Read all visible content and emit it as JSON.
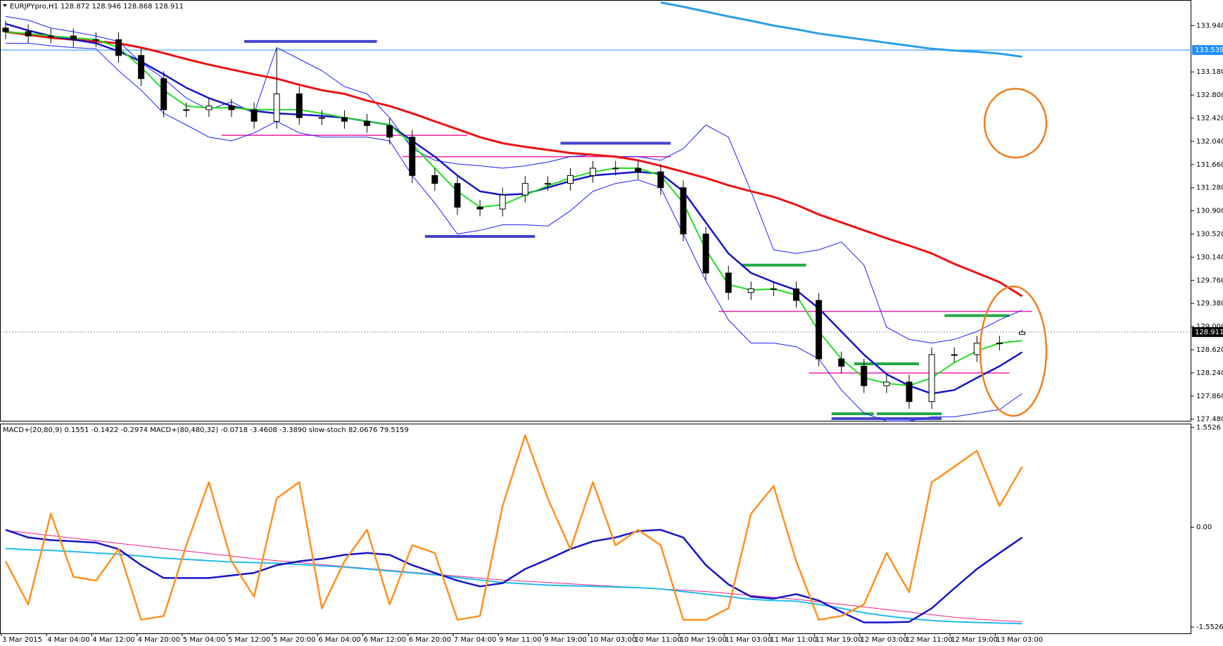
{
  "chart_data": [
    {
      "type": "candlestick",
      "title": "EURJPYpro,H1  128.872 128.946 128.868 128.911",
      "categories": [
        "3 Mar 2015",
        null,
        "4 Mar 04:00",
        null,
        "4 Mar 12:00",
        null,
        "4 Mar 20:00",
        null,
        "5 Mar 04:00",
        null,
        "5 Mar 12:00",
        null,
        "5 Mar 20:00",
        null,
        "6 Mar 04:00",
        null,
        "6 Mar 12:00",
        null,
        "6 Mar 20:00",
        null,
        "7 Mar 04:00",
        null,
        "9 Mar 11:00",
        null,
        "9 Mar 19:00",
        null,
        "10 Mar 03:00",
        null,
        "10 Mar 11:00",
        null,
        "10 Mar 19:00",
        null,
        "11 Mar 03:00",
        null,
        "11 Mar 11:00",
        null,
        "11 Mar 19:00",
        null,
        "12 Mar 03:00",
        null,
        "12 Mar 11:00",
        null,
        "12 Mar 19:00",
        null,
        "13 Mar 03:00",
        null
      ],
      "open": [
        133.9,
        133.84,
        133.77,
        133.77,
        133.71,
        133.71,
        133.45,
        133.07,
        132.56,
        132.56,
        132.62,
        132.56,
        132.37,
        132.82,
        132.43,
        132.43,
        132.37,
        132.3,
        132.11,
        131.48,
        131.35,
        130.96,
        130.93,
        131.16,
        131.35,
        131.35,
        131.48,
        131.6,
        131.6,
        131.54,
        131.28,
        130.52,
        129.88,
        129.56,
        129.62,
        129.62,
        129.43,
        128.47,
        128.35,
        128.03,
        128.09,
        127.77,
        128.54,
        128.54,
        128.73,
        128.872
      ],
      "high": [
        134.02,
        133.96,
        133.89,
        133.89,
        133.83,
        133.83,
        133.57,
        133.19,
        132.68,
        132.74,
        132.74,
        132.68,
        133.57,
        132.94,
        132.55,
        132.55,
        132.49,
        132.42,
        132.23,
        131.6,
        131.47,
        131.08,
        131.28,
        131.47,
        131.47,
        131.6,
        131.72,
        131.72,
        131.72,
        131.66,
        131.4,
        130.64,
        130.0,
        129.74,
        129.74,
        129.74,
        129.55,
        128.59,
        128.47,
        128.21,
        128.21,
        128.66,
        128.66,
        128.85,
        128.85,
        128.946
      ],
      "low": [
        133.72,
        133.65,
        133.65,
        133.59,
        133.59,
        133.33,
        132.95,
        132.44,
        132.44,
        132.44,
        132.44,
        132.25,
        132.25,
        132.31,
        132.31,
        132.25,
        132.18,
        131.99,
        131.36,
        131.23,
        130.84,
        130.81,
        130.81,
        131.04,
        131.23,
        131.23,
        131.36,
        131.48,
        131.42,
        131.16,
        130.4,
        129.76,
        129.44,
        129.44,
        129.5,
        129.31,
        128.35,
        128.23,
        127.91,
        127.91,
        127.65,
        127.65,
        128.42,
        128.42,
        128.61,
        128.868
      ],
      "close": [
        133.84,
        133.77,
        133.77,
        133.71,
        133.71,
        133.45,
        133.07,
        132.56,
        132.56,
        132.62,
        132.56,
        132.37,
        132.82,
        132.43,
        132.43,
        132.37,
        132.3,
        132.11,
        131.48,
        131.35,
        130.96,
        130.93,
        131.16,
        131.35,
        131.35,
        131.48,
        131.6,
        131.6,
        131.54,
        131.28,
        130.52,
        129.88,
        129.56,
        129.62,
        129.62,
        129.43,
        128.47,
        128.35,
        128.03,
        128.09,
        127.77,
        128.54,
        128.54,
        128.73,
        128.73,
        128.911
      ],
      "series": [
        {
          "color": "#1f1fff",
          "width": 1,
          "values": [
            134.09,
            134.03,
            133.9,
            133.84,
            133.77,
            133.68,
            133.33,
            133.07,
            132.75,
            132.56,
            132.69,
            132.5,
            133.58,
            133.39,
            133.2,
            132.94,
            132.82,
            132.43,
            131.92,
            131.73,
            131.67,
            131.64,
            131.6,
            131.64,
            131.7,
            131.79,
            131.82,
            131.79,
            131.79,
            131.73,
            131.92,
            132.31,
            132.11,
            131.22,
            130.26,
            130.2,
            130.26,
            130.39,
            130.01,
            128.99,
            128.79,
            128.73,
            128.79,
            128.92,
            129.11,
            129.27
          ]
        },
        {
          "color": "#1f1fff",
          "width": 1,
          "values": [
            133.65,
            133.65,
            133.61,
            133.58,
            133.56,
            133.2,
            132.88,
            132.5,
            132.31,
            132.11,
            132.05,
            132.18,
            132.37,
            132.18,
            132.11,
            132.11,
            132.11,
            132.05,
            131.48,
            131.03,
            130.52,
            130.58,
            130.67,
            130.67,
            130.65,
            130.9,
            131.22,
            131.35,
            131.41,
            131.28,
            130.52,
            129.75,
            129.11,
            128.73,
            128.73,
            128.67,
            128.47,
            127.96,
            127.58,
            127.45,
            127.45,
            127.52,
            127.52,
            127.58,
            127.64,
            127.9
          ]
        },
        {
          "color": "#ee1111",
          "width": 3,
          "values": [
            133.84,
            133.79,
            133.74,
            133.71,
            133.68,
            133.65,
            133.58,
            133.49,
            133.39,
            133.3,
            133.22,
            133.14,
            133.07,
            132.97,
            132.88,
            132.82,
            132.71,
            132.62,
            132.5,
            132.37,
            132.24,
            132.11,
            132.01,
            131.95,
            131.9,
            131.85,
            131.82,
            131.79,
            131.73,
            131.64,
            131.54,
            131.44,
            131.32,
            131.22,
            131.13,
            131.0,
            130.84,
            130.71,
            130.58,
            130.45,
            130.33,
            130.2,
            130.03,
            129.88,
            129.73,
            129.5
          ]
        },
        {
          "color": "#2b9fe8",
          "width": 3,
          "values": [
            null,
            null,
            null,
            null,
            null,
            null,
            null,
            null,
            null,
            null,
            null,
            null,
            null,
            null,
            null,
            null,
            null,
            null,
            null,
            null,
            null,
            null,
            null,
            null,
            null,
            null,
            null,
            null,
            null,
            134.32,
            134.25,
            134.17,
            134.09,
            134.02,
            133.94,
            133.88,
            133.81,
            133.76,
            133.71,
            133.66,
            133.61,
            133.56,
            133.53,
            133.51,
            133.48,
            133.43
          ]
        },
        {
          "color": "#1515c8",
          "width": 2.5,
          "values": [
            133.97,
            133.86,
            133.77,
            133.71,
            133.65,
            133.52,
            133.35,
            133.14,
            132.92,
            132.75,
            132.62,
            132.54,
            132.5,
            132.48,
            132.46,
            132.43,
            132.37,
            132.31,
            132.05,
            131.79,
            131.48,
            131.22,
            131.16,
            131.18,
            131.28,
            131.39,
            131.48,
            131.51,
            131.54,
            131.51,
            131.22,
            130.71,
            130.2,
            129.88,
            129.73,
            129.6,
            129.3,
            128.92,
            128.54,
            128.22,
            128.03,
            127.9,
            127.96,
            128.16,
            128.35,
            128.58
          ]
        },
        {
          "color": "#22dd22",
          "width": 2,
          "values": [
            133.84,
            133.81,
            133.77,
            133.74,
            133.71,
            133.58,
            133.26,
            132.88,
            132.62,
            132.59,
            132.59,
            132.56,
            132.56,
            132.56,
            132.5,
            132.43,
            132.37,
            132.31,
            131.99,
            131.6,
            131.22,
            130.96,
            131.0,
            131.16,
            131.31,
            131.44,
            131.54,
            131.6,
            131.6,
            131.48,
            131.03,
            130.26,
            129.69,
            129.6,
            129.62,
            129.52,
            128.92,
            128.47,
            128.16,
            128.07,
            128.03,
            128.16,
            128.41,
            128.6,
            128.73,
            128.77
          ]
        }
      ],
      "levels": [
        {
          "price": 133.68,
          "color": "#4444cc",
          "from": 11,
          "to": 16
        },
        {
          "price": 132.14,
          "color": "#ee22aa",
          "from": 10,
          "to": 20
        },
        {
          "price": 131.79,
          "color": "#ee22aa",
          "from": 18,
          "to": 29
        },
        {
          "price": 132.01,
          "color": "#4444cc",
          "from": 25,
          "to": 29
        },
        {
          "price": 130.48,
          "color": "#4444cc",
          "from": 19,
          "to": 23
        },
        {
          "price": 130.01,
          "color": "#22aa44",
          "from": 33,
          "to": 35
        },
        {
          "price": 129.25,
          "color": "#ee22aa",
          "from": 32,
          "to": 45
        },
        {
          "price": 129.18,
          "color": "#22aa44",
          "from": 42,
          "to": 44
        },
        {
          "price": 128.39,
          "color": "#22aa44",
          "from": 38,
          "to": 40
        },
        {
          "price": 128.24,
          "color": "#ee22aa",
          "from": 36,
          "to": 44
        },
        {
          "price": 127.57,
          "color": "#22aa44",
          "from": 37,
          "to": 38
        },
        {
          "price": 127.57,
          "color": "#22aa44",
          "from": 39,
          "to": 41
        },
        {
          "price": 127.49,
          "color": "#4444cc",
          "from": 37,
          "to": 41
        }
      ],
      "price_lines": [
        {
          "value": 133.539,
          "label": "133.539",
          "color": "#1e90ff"
        },
        {
          "value": 128.911,
          "label": "128.911",
          "color": "#999999"
        }
      ],
      "ylim": [
        127.454,
        134.349
      ],
      "yticks": [
        {
          "value": 133.94,
          "label": "133.940"
        },
        {
          "value": 133.18,
          "label": "133.180"
        },
        {
          "value": 132.8,
          "label": "132.800"
        },
        {
          "value": 132.42,
          "label": "132.420"
        },
        {
          "value": 132.04,
          "label": "132.040"
        },
        {
          "value": 131.66,
          "label": "131.660"
        },
        {
          "value": 131.28,
          "label": "131.280"
        },
        {
          "value": 130.9,
          "label": "130.900"
        },
        {
          "value": 130.52,
          "label": "130.520"
        },
        {
          "value": 130.14,
          "label": "130.140"
        },
        {
          "value": 129.76,
          "label": "129.760"
        },
        {
          "value": 129.38,
          "label": "129.380"
        },
        {
          "value": 129,
          "label": "129.000"
        },
        {
          "value": 128.62,
          "label": "128.620"
        },
        {
          "value": 128.24,
          "label": "128.240"
        },
        {
          "value": 127.86,
          "label": "127.860"
        },
        {
          "value": 127.48,
          "label": "127.480"
        }
      ]
    },
    {
      "type": "line",
      "title": "MACD+(20,80,9) 0.1551 -0.1422 -0.2974  MACD+(80,480,32) -0.0718 -3.4608 -3.3890  slow-stoch 82.0676 79.5159",
      "series": [
        {
          "color": "#ee2288",
          "width": 1,
          "values": [
            -0.05,
            -0.09,
            -0.13,
            -0.17,
            -0.21,
            -0.25,
            -0.29,
            -0.33,
            -0.37,
            -0.41,
            -0.45,
            -0.49,
            -0.52,
            -0.55,
            -0.58,
            -0.61,
            -0.64,
            -0.67,
            -0.7,
            -0.73,
            -0.76,
            -0.79,
            -0.82,
            -0.84,
            -0.86,
            -0.88,
            -0.9,
            -0.92,
            -0.94,
            -0.96,
            -0.98,
            -1.0,
            -1.03,
            -1.06,
            -1.09,
            -1.12,
            -1.16,
            -1.2,
            -1.24,
            -1.28,
            -1.32,
            -1.36,
            -1.4,
            -1.43,
            -1.45,
            -1.47
          ]
        },
        {
          "color": "#22bbee",
          "width": 2,
          "values": [
            -0.33,
            -0.35,
            -0.36,
            -0.38,
            -0.4,
            -0.42,
            -0.45,
            -0.48,
            -0.5,
            -0.52,
            -0.54,
            -0.55,
            -0.56,
            -0.58,
            -0.6,
            -0.62,
            -0.65,
            -0.68,
            -0.71,
            -0.74,
            -0.78,
            -0.82,
            -0.86,
            -0.88,
            -0.9,
            -0.91,
            -0.92,
            -0.93,
            -0.94,
            -0.96,
            -1.0,
            -1.04,
            -1.08,
            -1.12,
            -1.14,
            -1.15,
            -1.2,
            -1.26,
            -1.33,
            -1.38,
            -1.42,
            -1.45,
            -1.47,
            -1.48,
            -1.49,
            -1.5
          ]
        },
        {
          "color": "#1515c8",
          "width": 2.5,
          "values": [
            -0.04,
            -0.16,
            -0.2,
            -0.22,
            -0.24,
            -0.34,
            -0.59,
            -0.79,
            -0.79,
            -0.79,
            -0.75,
            -0.71,
            -0.59,
            -0.53,
            -0.49,
            -0.43,
            -0.4,
            -0.43,
            -0.59,
            -0.71,
            -0.83,
            -0.92,
            -0.87,
            -0.65,
            -0.5,
            -0.34,
            -0.22,
            -0.16,
            -0.06,
            -0.04,
            -0.16,
            -0.59,
            -0.89,
            -1.08,
            -1.11,
            -1.04,
            -1.14,
            -1.32,
            -1.48,
            -1.48,
            -1.47,
            -1.26,
            -0.95,
            -0.65,
            -0.4,
            -0.16
          ]
        },
        {
          "color": "#ff9020",
          "width": 2.5,
          "values": [
            -0.53,
            -1.2,
            0.21,
            -0.77,
            -0.83,
            -0.34,
            -1.44,
            -1.38,
            -0.28,
            0.7,
            -0.53,
            -1.08,
            0.45,
            0.7,
            -1.26,
            -0.53,
            -0.04,
            -1.2,
            -0.28,
            -0.4,
            -1.44,
            -1.38,
            0.33,
            1.43,
            0.45,
            -0.34,
            0.7,
            -0.28,
            -0.04,
            -0.28,
            -1.44,
            -1.44,
            -1.26,
            0.21,
            0.64,
            -0.53,
            -1.44,
            -1.38,
            -1.2,
            -0.4,
            -1.01,
            0.7,
            0.94,
            1.19,
            0.33,
            0.94
          ]
        }
      ],
      "ylim": [
        -1.65,
        1.6
      ],
      "yticks": [
        1.5526,
        {
          "value": 0,
          "label": "0.00"
        },
        -1.5526
      ]
    }
  ]
}
